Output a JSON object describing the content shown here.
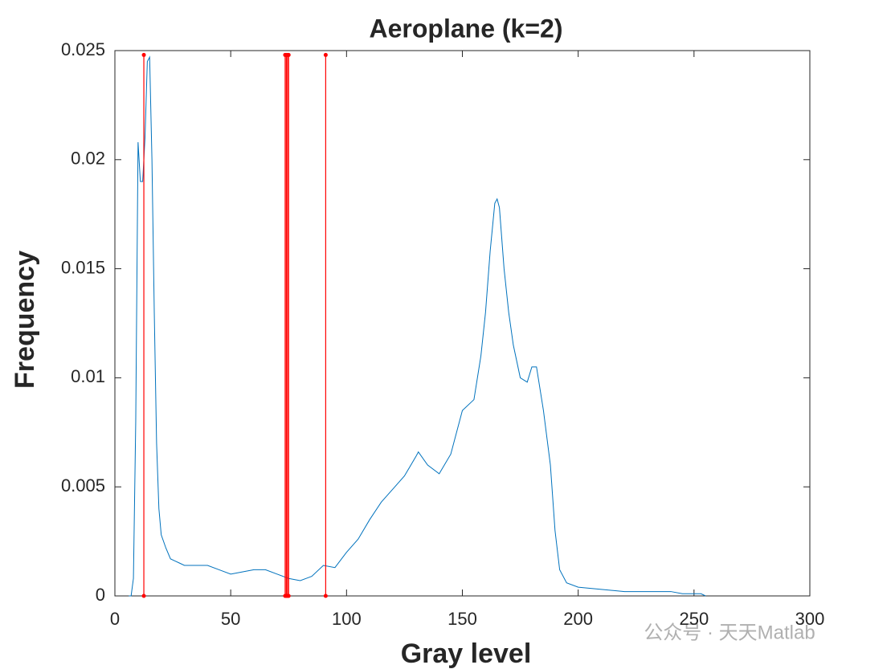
{
  "chart_data": {
    "type": "line",
    "title": "Aeroplane (k=2)",
    "x_label": "Gray level",
    "y_label": "Frequency",
    "x": [
      6,
      7,
      8,
      9,
      10,
      11,
      12,
      13,
      14,
      15,
      16,
      17,
      18,
      19,
      20,
      22,
      24,
      26,
      28,
      30,
      35,
      40,
      45,
      50,
      55,
      60,
      65,
      70,
      75,
      80,
      85,
      90,
      95,
      100,
      105,
      110,
      115,
      120,
      125,
      130,
      131,
      135,
      140,
      145,
      150,
      155,
      158,
      160,
      162,
      164,
      165,
      166,
      168,
      170,
      172,
      175,
      178,
      180,
      182,
      185,
      188,
      190,
      192,
      195,
      200,
      210,
      220,
      230,
      240,
      245,
      250,
      253,
      255
    ],
    "series": [
      {
        "color": "#0072bd",
        "values": [
          0,
          0,
          0.0008,
          0.008,
          0.0208,
          0.019,
          0.019,
          0.021,
          0.0245,
          0.0247,
          0.02,
          0.013,
          0.007,
          0.004,
          0.0028,
          0.0022,
          0.0017,
          0.0016,
          0.0015,
          0.0014,
          0.0014,
          0.0014,
          0.0012,
          0.001,
          0.0011,
          0.0012,
          0.0012,
          0.001,
          0.0008,
          0.0007,
          0.0009,
          0.0014,
          0.0013,
          0.002,
          0.0026,
          0.0035,
          0.0043,
          0.0049,
          0.0055,
          0.0064,
          0.0066,
          0.006,
          0.0056,
          0.0065,
          0.0085,
          0.009,
          0.011,
          0.013,
          0.0158,
          0.018,
          0.0182,
          0.0178,
          0.015,
          0.013,
          0.0115,
          0.01,
          0.0098,
          0.0105,
          0.0105,
          0.0085,
          0.006,
          0.003,
          0.0012,
          0.0006,
          0.0004,
          0.0003,
          0.0002,
          0.0002,
          0.0002,
          0.0001,
          0.0001,
          0.0001,
          0
        ]
      }
    ],
    "stems": {
      "color": "#ff0000",
      "x": [
        12.5,
        73.5,
        74,
        74.5,
        75,
        91
      ],
      "top": 0.0248
    },
    "xlim": [
      0,
      300
    ],
    "xticks": [
      0,
      50,
      100,
      150,
      200,
      250,
      300
    ],
    "ylim": [
      0,
      0.025
    ],
    "yticks": [
      0,
      0.005,
      0.01,
      0.015,
      0.02,
      0.025
    ],
    "watermark": "公众号 · 天天Matlab"
  }
}
